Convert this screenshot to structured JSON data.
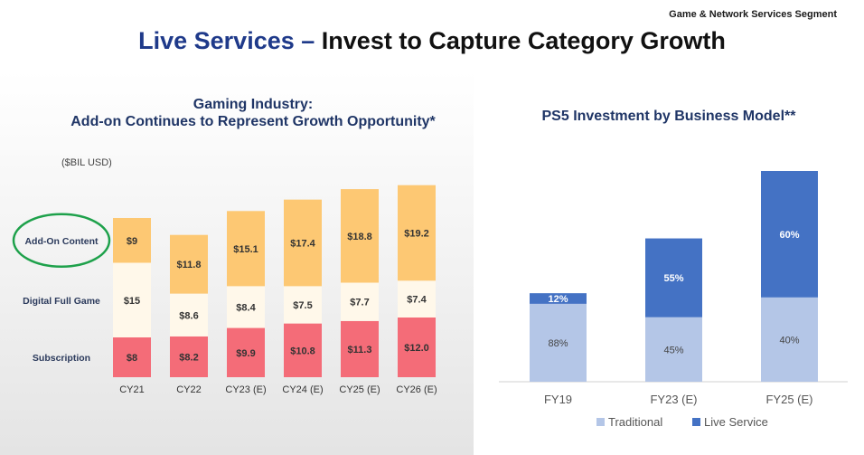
{
  "header": {
    "segment": "Game & Network Services Segment",
    "title_part1": "Live Services –",
    "title_part2": "Invest to Capture Category Growth"
  },
  "colors": {
    "title_blue": "#1f3a8a",
    "subscription": "#f46c78",
    "digital_full_game": "#fff8ea",
    "add_on_content": "#fdc873",
    "traditional": "#b4c6e7",
    "live_service": "#4472c4",
    "highlight_circle": "#1ea14b"
  },
  "chart_data": [
    {
      "type": "bar",
      "stacked": true,
      "title_line1": "Gaming Industry:",
      "title_line2": "Add-on Continues to Represent Growth Opportunity*",
      "unit_label": "($BIL USD)",
      "categories": [
        "CY21",
        "CY22",
        "CY23 (E)",
        "CY24 (E)",
        "CY25 (E)",
        "CY26 (E)"
      ],
      "series": [
        {
          "name": "Subscription",
          "values": [
            8,
            8.2,
            9.9,
            10.8,
            11.3,
            12.0
          ],
          "labels": [
            "$8",
            "$8.2",
            "$9.9",
            "$10.8",
            "$11.3",
            "$12.0"
          ]
        },
        {
          "name": "Digital Full Game",
          "values": [
            15,
            8.6,
            8.4,
            7.5,
            7.7,
            7.4
          ],
          "labels": [
            "$15",
            "$8.6",
            "$8.4",
            "$7.5",
            "$7.7",
            "$7.4"
          ]
        },
        {
          "name": "Add-On Content",
          "values": [
            9,
            11.8,
            15.1,
            17.4,
            18.8,
            19.2
          ],
          "labels": [
            "$9",
            "$11.8",
            "$15.1",
            "$17.4",
            "$18.8",
            "$19.2"
          ]
        }
      ],
      "highlighted_series": "Add-On Content",
      "legend": "left"
    },
    {
      "type": "bar",
      "stacked": true,
      "percent": true,
      "title": "PS5 Investment by Business Model**",
      "categories": [
        "FY19",
        "FY23 (E)",
        "FY25 (E)"
      ],
      "relative_height": [
        0.42,
        0.68,
        1.0
      ],
      "series": [
        {
          "name": "Traditional",
          "values": [
            88,
            45,
            40
          ],
          "labels": [
            "88%",
            "45%",
            "40%"
          ]
        },
        {
          "name": "Live Service",
          "values": [
            12,
            55,
            60
          ],
          "labels": [
            "12%",
            "55%",
            "60%"
          ]
        }
      ],
      "legend": "bottom"
    }
  ]
}
